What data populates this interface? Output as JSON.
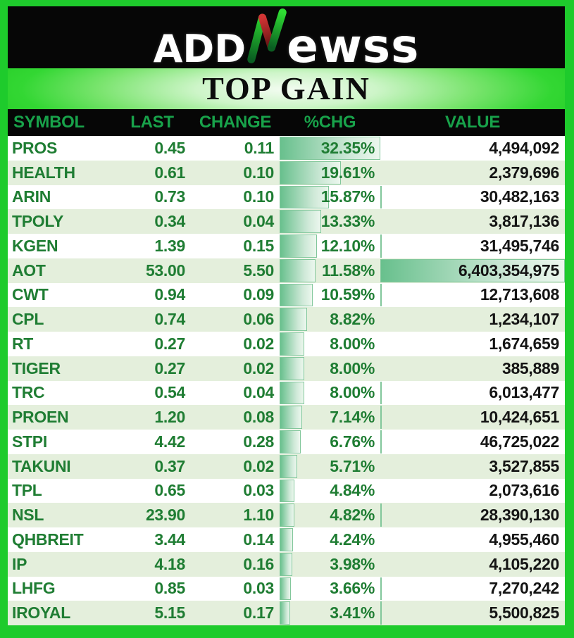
{
  "logo": {
    "text_before_n": "ADD",
    "n_icon": "green-red-stylized-n",
    "text_after_n": "ewss"
  },
  "title": "TOP GAIN",
  "chart_data": {
    "type": "table",
    "title": "TOP GAIN",
    "columns": [
      "SYMBOL",
      "LAST",
      "CHANGE",
      "%CHG",
      "VALUE"
    ],
    "rows": [
      {
        "symbol": "PROS",
        "last": "0.45",
        "change": "0.11",
        "pct_chg": "32.35%",
        "pct_chg_num": 32.35,
        "value": "4,494,092",
        "value_num": 4494092
      },
      {
        "symbol": "HEALTH",
        "last": "0.61",
        "change": "0.10",
        "pct_chg": "19.61%",
        "pct_chg_num": 19.61,
        "value": "2,379,696",
        "value_num": 2379696
      },
      {
        "symbol": "ARIN",
        "last": "0.73",
        "change": "0.10",
        "pct_chg": "15.87%",
        "pct_chg_num": 15.87,
        "value": "30,482,163",
        "value_num": 30482163
      },
      {
        "symbol": "TPOLY",
        "last": "0.34",
        "change": "0.04",
        "pct_chg": "13.33%",
        "pct_chg_num": 13.33,
        "value": "3,817,136",
        "value_num": 3817136
      },
      {
        "symbol": "KGEN",
        "last": "1.39",
        "change": "0.15",
        "pct_chg": "12.10%",
        "pct_chg_num": 12.1,
        "value": "31,495,746",
        "value_num": 31495746
      },
      {
        "symbol": "AOT",
        "last": "53.00",
        "change": "5.50",
        "pct_chg": "11.58%",
        "pct_chg_num": 11.58,
        "value": "6,403,354,975",
        "value_num": 6403354975
      },
      {
        "symbol": "CWT",
        "last": "0.94",
        "change": "0.09",
        "pct_chg": "10.59%",
        "pct_chg_num": 10.59,
        "value": "12,713,608",
        "value_num": 12713608
      },
      {
        "symbol": "CPL",
        "last": "0.74",
        "change": "0.06",
        "pct_chg": "8.82%",
        "pct_chg_num": 8.82,
        "value": "1,234,107",
        "value_num": 1234107
      },
      {
        "symbol": "RT",
        "last": "0.27",
        "change": "0.02",
        "pct_chg": "8.00%",
        "pct_chg_num": 8.0,
        "value": "1,674,659",
        "value_num": 1674659
      },
      {
        "symbol": "TIGER",
        "last": "0.27",
        "change": "0.02",
        "pct_chg": "8.00%",
        "pct_chg_num": 8.0,
        "value": "385,889",
        "value_num": 385889
      },
      {
        "symbol": "TRC",
        "last": "0.54",
        "change": "0.04",
        "pct_chg": "8.00%",
        "pct_chg_num": 8.0,
        "value": "6,013,477",
        "value_num": 6013477
      },
      {
        "symbol": "PROEN",
        "last": "1.20",
        "change": "0.08",
        "pct_chg": "7.14%",
        "pct_chg_num": 7.14,
        "value": "10,424,651",
        "value_num": 10424651
      },
      {
        "symbol": "STPI",
        "last": "4.42",
        "change": "0.28",
        "pct_chg": "6.76%",
        "pct_chg_num": 6.76,
        "value": "46,725,022",
        "value_num": 46725022
      },
      {
        "symbol": "TAKUNI",
        "last": "0.37",
        "change": "0.02",
        "pct_chg": "5.71%",
        "pct_chg_num": 5.71,
        "value": "3,527,855",
        "value_num": 3527855
      },
      {
        "symbol": "TPL",
        "last": "0.65",
        "change": "0.03",
        "pct_chg": "4.84%",
        "pct_chg_num": 4.84,
        "value": "2,073,616",
        "value_num": 2073616
      },
      {
        "symbol": "NSL",
        "last": "23.90",
        "change": "1.10",
        "pct_chg": "4.82%",
        "pct_chg_num": 4.82,
        "value": "28,390,130",
        "value_num": 28390130
      },
      {
        "symbol": "QHBREIT",
        "last": "3.44",
        "change": "0.14",
        "pct_chg": "4.24%",
        "pct_chg_num": 4.24,
        "value": "4,955,460",
        "value_num": 4955460
      },
      {
        "symbol": "IP",
        "last": "4.18",
        "change": "0.16",
        "pct_chg": "3.98%",
        "pct_chg_num": 3.98,
        "value": "4,105,220",
        "value_num": 4105220
      },
      {
        "symbol": "LHFG",
        "last": "0.85",
        "change": "0.03",
        "pct_chg": "3.66%",
        "pct_chg_num": 3.66,
        "value": "7,270,242",
        "value_num": 7270242
      },
      {
        "symbol": "IROYAL",
        "last": "5.15",
        "change": "0.17",
        "pct_chg": "3.41%",
        "pct_chg_num": 3.41,
        "value": "5,500,825",
        "value_num": 5500825
      }
    ],
    "data_bars": {
      "pct_chg_scale_max": 32.35,
      "value_scale_max": 6403354975,
      "value_bar_visible_min": 5000000,
      "style": "green-gradient-left-to-white-with-border"
    },
    "layout_hints": {
      "row_striping": [
        "white",
        "light-green"
      ],
      "legend": "none",
      "grid": "off"
    }
  },
  "colors": {
    "frame_green": "#1ecb2c",
    "panel_black": "#060606",
    "header_text_green": "#18a24a",
    "row_text_green": "#1f7d33",
    "value_text_black": "#141414",
    "row_alt_bg": "#e4efdc",
    "bar_fill_start": "#68c08d",
    "bar_fill_end": "#ecf7ee",
    "bar_border": "#82c79b",
    "logo_red": "#c22a2a",
    "logo_green": "#27cc2f",
    "logo_white": "#ffffff"
  }
}
